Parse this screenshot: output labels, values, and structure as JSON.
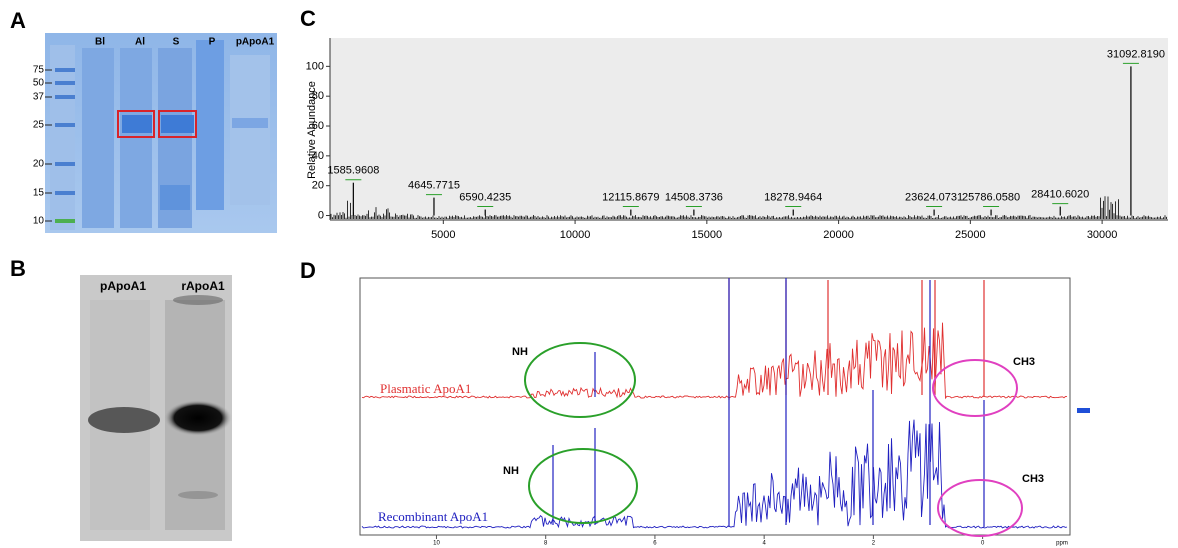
{
  "panel_a": {
    "label": "A",
    "lanes": [
      "Bl",
      "Al",
      "S",
      "P",
      "pApoA1"
    ],
    "markers": [
      "75",
      "50",
      "37",
      "25",
      "20",
      "15",
      "10"
    ]
  },
  "panel_b": {
    "label": "B",
    "lanes": [
      "pApoA1",
      "rApoA1"
    ]
  },
  "panel_c": {
    "label": "C",
    "y_label": "Relative Abundance",
    "xlim": [
      700,
      32500
    ],
    "ylim": [
      -3,
      119
    ],
    "xticks": [
      5000,
      10000,
      15000,
      20000,
      25000,
      30000
    ],
    "yticks": [
      0,
      20,
      40,
      60,
      80,
      100
    ],
    "peaks": [
      {
        "value": 1585.9608,
        "label": "1585.9608",
        "intensity": 22
      },
      {
        "value": 4645.7715,
        "label": "4645.7715",
        "intensity": 12
      },
      {
        "value": 6590.4235,
        "label": "6590.4235",
        "intensity": 4
      },
      {
        "value": 12115.8679,
        "label": "12115.8679",
        "intensity": 4
      },
      {
        "value": 14508.3736,
        "label": "14508.3736",
        "intensity": 4
      },
      {
        "value": 18278.9464,
        "label": "18278.9464",
        "intensity": 4
      },
      {
        "value": 23624.0731,
        "label": "23624.0731",
        "intensity": 4
      },
      {
        "value": 25786.058,
        "label": "25786.0580",
        "intensity": 4
      },
      {
        "value": 28410.602,
        "label": "28410.6020",
        "intensity": 6
      },
      {
        "value": 31092.819,
        "label": "31092.8190",
        "intensity": 100
      }
    ]
  },
  "panel_d": {
    "label": "D",
    "xlim": [
      11.4,
      -1.6
    ],
    "xticks": [
      10,
      8,
      6,
      4,
      2,
      0
    ],
    "x_unit": "ppm",
    "annotations": [
      "NH",
      "CH3",
      "NH",
      "CH3"
    ],
    "spectra": [
      "Plasmatic ApoA1",
      "Recombinant ApoA1"
    ]
  }
}
